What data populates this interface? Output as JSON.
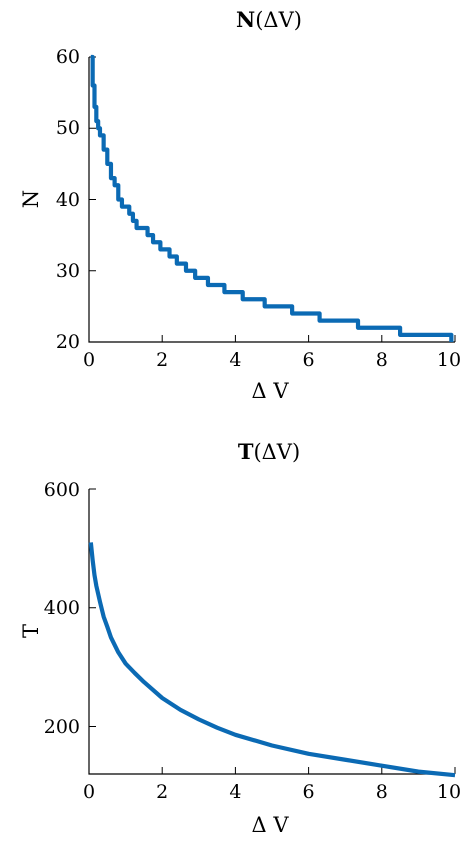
{
  "chart_data": [
    {
      "type": "line",
      "title_main": "N",
      "title_arg": "(ΔV)",
      "xlabel": "Δ V",
      "ylabel": "N",
      "xlim": [
        0,
        10
      ],
      "ylim": [
        20,
        60
      ],
      "xticks": [
        "0",
        "2",
        "4",
        "6",
        "8",
        "10"
      ],
      "yticks": [
        "20",
        "30",
        "40",
        "50",
        "60"
      ],
      "grid": false,
      "color": "#0b6ab4",
      "series": [
        {
          "step": true,
          "x": [
            0.05,
            0.1,
            0.15,
            0.2,
            0.25,
            0.3,
            0.4,
            0.5,
            0.6,
            0.7,
            0.8,
            0.9,
            1.0,
            1.1,
            1.2,
            1.3,
            1.45,
            1.6,
            1.75,
            1.95,
            2.2,
            2.4,
            2.65,
            2.9,
            3.25,
            3.7,
            4.2,
            4.8,
            5.55,
            6.3,
            7.35,
            8.5,
            9.9
          ],
          "y": [
            60,
            56,
            53,
            51,
            50,
            49,
            47,
            45,
            43,
            42,
            40,
            39,
            39,
            38,
            37,
            36,
            36,
            35,
            34,
            33,
            32,
            31,
            30,
            29,
            28,
            27,
            26,
            25,
            24,
            23,
            22,
            21,
            20
          ]
        }
      ]
    },
    {
      "type": "line",
      "title_main": "T",
      "title_arg": "(ΔV)",
      "xlabel": "Δ V",
      "ylabel": "T",
      "xlim": [
        0,
        10
      ],
      "ylim": [
        120,
        600
      ],
      "xticks": [
        "0",
        "2",
        "4",
        "6",
        "8",
        "10"
      ],
      "yticks": [
        "200",
        "400",
        "600"
      ],
      "grid": false,
      "color": "#0b6ab4",
      "series": [
        {
          "step": false,
          "x": [
            0.05,
            0.1,
            0.15,
            0.2,
            0.3,
            0.4,
            0.5,
            0.6,
            0.8,
            1.0,
            1.25,
            1.5,
            2.0,
            2.5,
            3.0,
            3.5,
            4.0,
            5.0,
            6.0,
            7.0,
            8.0,
            9.0,
            10.0
          ],
          "y": [
            510,
            480,
            455,
            437,
            410,
            385,
            368,
            350,
            325,
            306,
            290,
            275,
            248,
            228,
            212,
            198,
            186,
            168,
            154,
            144,
            134,
            124,
            118
          ]
        }
      ]
    }
  ]
}
